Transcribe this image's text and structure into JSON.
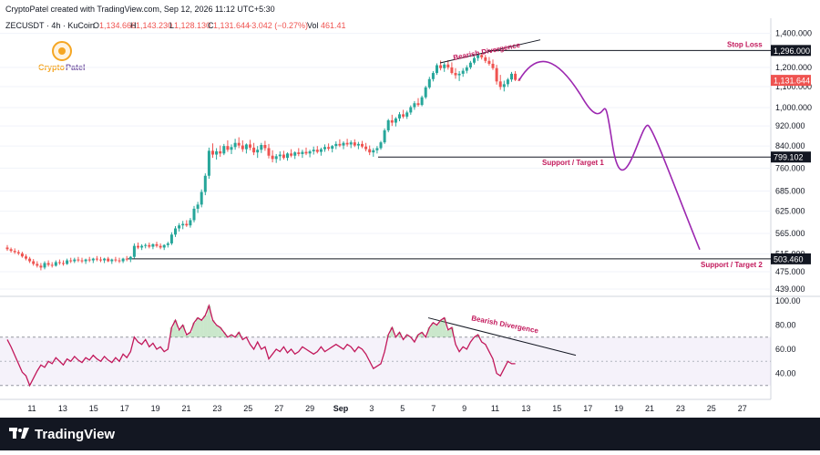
{
  "header": {
    "credit": "CryptoPatel created with TradingView.com, Sep 12, 2026 11:12 UTC+5:30",
    "symbol": "ZECUSDT · 4h · KuCoin",
    "o_label": "O",
    "o_value": "1,134.666",
    "h_label": "H",
    "h_value": "1,143.230",
    "l_label": "L",
    "l_value": "1,128.130",
    "c_label": "C",
    "c_value": "1,131.644",
    "change": "−3.042 (−0.27%)",
    "vol_label": "Vol",
    "vol_value": "461.41"
  },
  "brand": {
    "name_a": "Crypto",
    "name_b": "Patel"
  },
  "footer": {
    "logo_text": "TradingView"
  },
  "colors": {
    "up": "#26a69a",
    "down": "#ef5350",
    "projection": "#9c27b0",
    "annotation": "#c2185b",
    "rsi_line": "#c2185b",
    "rsi_band": "#7e57c2",
    "level_line": "#131722",
    "last_price_bg": "#ef5350"
  },
  "chart_data": [
    {
      "type": "candlestick",
      "symbol": "ZECUSDT",
      "timeframe": "4h",
      "scale": "log",
      "ylim": [
        430,
        1500
      ],
      "price_axis_ticks": [
        1400,
        1200,
        1100,
        1000,
        920,
        840,
        760,
        685,
        625,
        565,
        515,
        475,
        439
      ],
      "price_axis_labels": [
        "1,400.000",
        "1,200.000",
        "1,100.000",
        "1,000.000",
        "920.000",
        "840.000",
        "760.000",
        "685.000",
        "625.000",
        "565.000",
        "515.000",
        "475.000",
        "439.000"
      ],
      "x_ticks": [
        "11",
        "13",
        "15",
        "17",
        "19",
        "21",
        "23",
        "25",
        "27",
        "29",
        "Sep",
        "3",
        "5",
        "7",
        "9",
        "11",
        "13",
        "15",
        "17",
        "19",
        "21",
        "23",
        "25",
        "27"
      ],
      "last_price": "1,131.644",
      "levels": [
        {
          "name": "Stop Loss",
          "value": 1296,
          "label": "1,296.000"
        },
        {
          "name": "Support / Target 1",
          "value": 799.102,
          "label": "799.102"
        },
        {
          "name": "Support / Target 2",
          "value": 503.46,
          "label": "503.460"
        }
      ],
      "annotations": [
        {
          "text": "Bearish Divergence"
        }
      ],
      "candles_ohlc": [
        [
          530,
          536,
          522,
          526
        ],
        [
          526,
          530,
          518,
          522
        ],
        [
          522,
          528,
          515,
          519
        ],
        [
          519,
          524,
          512,
          516
        ],
        [
          516,
          520,
          506,
          509
        ],
        [
          509,
          514,
          500,
          504
        ],
        [
          504,
          508,
          494,
          498
        ],
        [
          498,
          503,
          488,
          492
        ],
        [
          492,
          498,
          484,
          488
        ],
        [
          488,
          494,
          478,
          484
        ],
        [
          484,
          498,
          480,
          494
        ],
        [
          494,
          500,
          486,
          490
        ],
        [
          490,
          496,
          484,
          488
        ],
        [
          488,
          500,
          486,
          496
        ],
        [
          496,
          502,
          490,
          494
        ],
        [
          494,
          500,
          488,
          492
        ],
        [
          492,
          504,
          490,
          500
        ],
        [
          500,
          506,
          494,
          498
        ],
        [
          498,
          506,
          494,
          502
        ],
        [
          502,
          508,
          496,
          500
        ],
        [
          500,
          506,
          494,
          498
        ],
        [
          498,
          504,
          492,
          502
        ],
        [
          502,
          508,
          496,
          500
        ],
        [
          500,
          506,
          494,
          504
        ],
        [
          504,
          510,
          498,
          502
        ],
        [
          502,
          508,
          496,
          500
        ],
        [
          500,
          506,
          494,
          504
        ],
        [
          504,
          508,
          496,
          498
        ],
        [
          498,
          504,
          492,
          502
        ],
        [
          502,
          508,
          496,
          500
        ],
        [
          500,
          506,
          494,
          498
        ],
        [
          498,
          506,
          494,
          504
        ],
        [
          504,
          510,
          498,
          502
        ],
        [
          502,
          510,
          496,
          508
        ],
        [
          508,
          540,
          504,
          534
        ],
        [
          534,
          542,
          526,
          530
        ],
        [
          530,
          538,
          524,
          534
        ],
        [
          534,
          540,
          528,
          536
        ],
        [
          536,
          542,
          528,
          532
        ],
        [
          532,
          540,
          526,
          538
        ],
        [
          538,
          544,
          530,
          534
        ],
        [
          534,
          540,
          526,
          530
        ],
        [
          530,
          538,
          524,
          536
        ],
        [
          536,
          544,
          530,
          540
        ],
        [
          540,
          568,
          536,
          562
        ],
        [
          562,
          584,
          556,
          578
        ],
        [
          578,
          592,
          570,
          586
        ],
        [
          586,
          598,
          576,
          590
        ],
        [
          590,
          600,
          582,
          586
        ],
        [
          586,
          606,
          580,
          600
        ],
        [
          600,
          640,
          594,
          632
        ],
        [
          632,
          652,
          620,
          644
        ],
        [
          644,
          690,
          636,
          682
        ],
        [
          682,
          742,
          672,
          734
        ],
        [
          734,
          834,
          724,
          822
        ],
        [
          822,
          850,
          796,
          808
        ],
        [
          808,
          832,
          790,
          820
        ],
        [
          820,
          842,
          800,
          812
        ],
        [
          812,
          848,
          806,
          840
        ],
        [
          840,
          862,
          818,
          826
        ],
        [
          826,
          846,
          810,
          836
        ],
        [
          836,
          868,
          826,
          852
        ],
        [
          852,
          874,
          832,
          842
        ],
        [
          842,
          862,
          818,
          828
        ],
        [
          828,
          850,
          812,
          846
        ],
        [
          846,
          864,
          824,
          834
        ],
        [
          834,
          852,
          806,
          816
        ],
        [
          816,
          840,
          796,
          826
        ],
        [
          826,
          852,
          814,
          844
        ],
        [
          844,
          860,
          822,
          832
        ],
        [
          832,
          848,
          794,
          804
        ],
        [
          804,
          824,
          780,
          792
        ],
        [
          792,
          810,
          778,
          802
        ],
        [
          802,
          820,
          786,
          808
        ],
        [
          808,
          822,
          790,
          796
        ],
        [
          796,
          816,
          786,
          812
        ],
        [
          812,
          828,
          798,
          804
        ],
        [
          804,
          820,
          792,
          816
        ],
        [
          816,
          832,
          802,
          810
        ],
        [
          810,
          826,
          796,
          818
        ],
        [
          818,
          834,
          806,
          812
        ],
        [
          812,
          826,
          798,
          820
        ],
        [
          820,
          838,
          808,
          826
        ],
        [
          826,
          840,
          812,
          818
        ],
        [
          818,
          834,
          804,
          828
        ],
        [
          828,
          846,
          818,
          836
        ],
        [
          836,
          850,
          822,
          830
        ],
        [
          830,
          844,
          816,
          840
        ],
        [
          840,
          858,
          828,
          848
        ],
        [
          848,
          866,
          836,
          842
        ],
        [
          842,
          858,
          828,
          852
        ],
        [
          852,
          868,
          838,
          846
        ],
        [
          846,
          862,
          832,
          854
        ],
        [
          854,
          866,
          836,
          842
        ],
        [
          842,
          856,
          828,
          848
        ],
        [
          848,
          860,
          832,
          838
        ],
        [
          838,
          852,
          820,
          828
        ],
        [
          828,
          842,
          806,
          816
        ],
        [
          816,
          832,
          800,
          824
        ],
        [
          824,
          840,
          812,
          832
        ],
        [
          832,
          860,
          826,
          854
        ],
        [
          854,
          910,
          848,
          902
        ],
        [
          902,
          950,
          894,
          944
        ],
        [
          944,
          968,
          920,
          934
        ],
        [
          934,
          958,
          918,
          952
        ],
        [
          952,
          980,
          940,
          970
        ],
        [
          970,
          990,
          952,
          960
        ],
        [
          960,
          986,
          950,
          978
        ],
        [
          978,
          1010,
          968,
          1002
        ],
        [
          1002,
          1030,
          990,
          1020
        ],
        [
          1020,
          1044,
          1004,
          1012
        ],
        [
          1012,
          1056,
          1006,
          1048
        ],
        [
          1048,
          1104,
          1040,
          1096
        ],
        [
          1096,
          1150,
          1088,
          1138
        ],
        [
          1138,
          1180,
          1126,
          1170
        ],
        [
          1170,
          1222,
          1160,
          1212
        ],
        [
          1212,
          1238,
          1184,
          1196
        ],
        [
          1196,
          1226,
          1176,
          1216
        ],
        [
          1216,
          1240,
          1188,
          1200
        ],
        [
          1200,
          1228,
          1162,
          1170
        ],
        [
          1170,
          1196,
          1140,
          1158
        ],
        [
          1158,
          1180,
          1128,
          1166
        ],
        [
          1166,
          1196,
          1150,
          1182
        ],
        [
          1182,
          1212,
          1168,
          1200
        ],
        [
          1200,
          1236,
          1190,
          1226
        ],
        [
          1226,
          1262,
          1216,
          1252
        ],
        [
          1252,
          1278,
          1236,
          1270
        ],
        [
          1270,
          1282,
          1244,
          1256
        ],
        [
          1256,
          1270,
          1224,
          1236
        ],
        [
          1236,
          1258,
          1210,
          1220
        ],
        [
          1220,
          1244,
          1186,
          1196
        ],
        [
          1196,
          1214,
          1110,
          1126
        ],
        [
          1126,
          1160,
          1084,
          1098
        ],
        [
          1098,
          1130,
          1076,
          1112
        ],
        [
          1112,
          1144,
          1098,
          1136
        ],
        [
          1136,
          1176,
          1124,
          1166
        ],
        [
          1166,
          1180,
          1128,
          1134
        ],
        [
          1134,
          1143,
          1128,
          1132
        ]
      ],
      "projection_note": "drawn path"
    },
    {
      "type": "line",
      "name": "RSI",
      "ylim": [
        20,
        100
      ],
      "y_ticks": [
        100,
        80,
        60,
        40
      ],
      "y_tick_labels": [
        "100.00",
        "80.00",
        "60.00",
        "40.00"
      ],
      "band": [
        30,
        70
      ],
      "midline": 50,
      "annotations": [
        {
          "text": "Bearish Divergence"
        }
      ],
      "values": [
        68,
        62,
        55,
        48,
        41,
        38,
        30,
        36,
        42,
        47,
        45,
        50,
        48,
        53,
        50,
        47,
        52,
        50,
        54,
        51,
        49,
        53,
        51,
        55,
        52,
        50,
        54,
        51,
        49,
        53,
        50,
        56,
        53,
        58,
        70,
        66,
        64,
        68,
        62,
        65,
        60,
        62,
        58,
        60,
        78,
        84,
        76,
        80,
        72,
        74,
        82,
        86,
        84,
        88,
        96,
        84,
        80,
        78,
        74,
        70,
        72,
        70,
        74,
        68,
        70,
        64,
        60,
        66,
        60,
        62,
        52,
        56,
        60,
        58,
        62,
        57,
        60,
        56,
        58,
        62,
        60,
        58,
        56,
        58,
        62,
        58,
        60,
        62,
        64,
        62,
        60,
        64,
        62,
        58,
        62,
        60,
        56,
        50,
        44,
        46,
        48,
        58,
        72,
        78,
        70,
        74,
        68,
        72,
        70,
        66,
        72,
        74,
        70,
        78,
        82,
        80,
        84,
        86,
        76,
        78,
        64,
        58,
        62,
        60,
        66,
        70,
        72,
        66,
        64,
        58,
        52,
        40,
        38,
        44,
        50,
        48,
        48
      ]
    }
  ]
}
